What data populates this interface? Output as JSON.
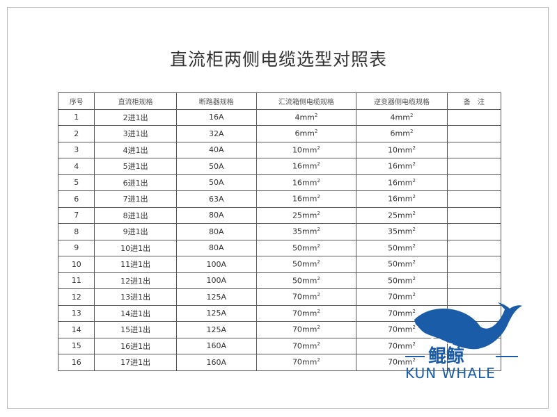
{
  "title": "直流柜两侧电缆选型对照表",
  "table": {
    "headers": [
      "序号",
      "直流柜规格",
      "断路器规格",
      "汇流箱侧电缆规格",
      "逆变器侧电缆规格",
      "备　注"
    ],
    "rows": [
      [
        "1",
        "2进1出",
        "16A",
        "4",
        "4",
        ""
      ],
      [
        "2",
        "3进1出",
        "32A",
        "6",
        "6",
        ""
      ],
      [
        "3",
        "4进1出",
        "40A",
        "10",
        "10",
        ""
      ],
      [
        "4",
        "5进1出",
        "50A",
        "16",
        "16",
        ""
      ],
      [
        "5",
        "6进1出",
        "50A",
        "16",
        "16",
        ""
      ],
      [
        "6",
        "7进1出",
        "63A",
        "16",
        "16",
        ""
      ],
      [
        "7",
        "8进1出",
        "80A",
        "25",
        "25",
        ""
      ],
      [
        "8",
        "9进1出",
        "80A",
        "35",
        "35",
        ""
      ],
      [
        "9",
        "10进1出",
        "80A",
        "50",
        "50",
        ""
      ],
      [
        "10",
        "11进1出",
        "100A",
        "50",
        "50",
        ""
      ],
      [
        "11",
        "12进1出",
        "100A",
        "50",
        "50",
        ""
      ],
      [
        "12",
        "13进1出",
        "125A",
        "70",
        "70",
        ""
      ],
      [
        "13",
        "14进1出",
        "125A",
        "70",
        "70",
        ""
      ],
      [
        "14",
        "15进1出",
        "125A",
        "70",
        "70",
        ""
      ],
      [
        "15",
        "16进1出",
        "160A",
        "70",
        "70",
        ""
      ],
      [
        "16",
        "17进1出",
        "160A",
        "70",
        "70",
        ""
      ]
    ],
    "unit": "mm",
    "unit_exp": "2"
  },
  "logo": {
    "cn": "鲲鲸",
    "en": "KUN WHALE",
    "color": "#1a5ca8"
  }
}
